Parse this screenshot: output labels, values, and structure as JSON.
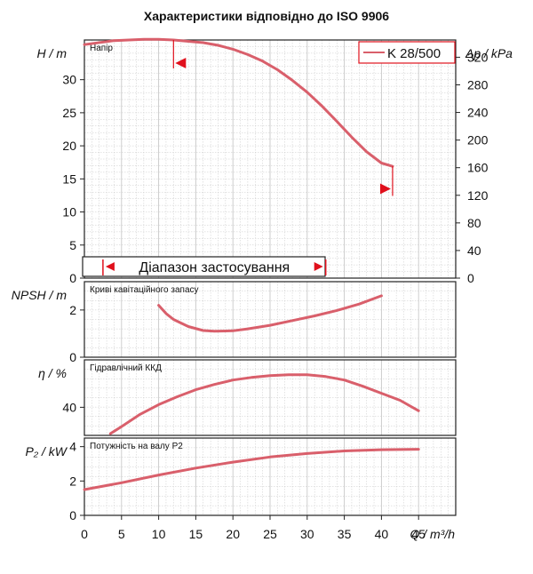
{
  "title": "Характеристики відповідно до ISO 9906",
  "colors": {
    "curve": "#d95f6b",
    "marker": "#e0101c",
    "grid": "#c8c8c8",
    "axis": "#222222"
  },
  "chart_data": [
    {
      "type": "line",
      "panel": "head",
      "label": "Напір",
      "legend": "K 28/500",
      "ylabel_left": "H / m",
      "ylabel_right": "Δp / kPa",
      "ylim": [
        0,
        36
      ],
      "yticks": [
        0,
        5,
        10,
        15,
        20,
        25,
        30
      ],
      "right_ylim": [
        0,
        345
      ],
      "right_yticks": [
        0,
        40,
        80,
        120,
        160,
        200,
        240,
        280,
        320
      ],
      "series": [
        {
          "name": "K 28/500",
          "x": [
            0,
            4,
            8,
            10,
            12,
            14,
            16,
            18,
            20,
            22,
            24,
            26,
            28,
            30,
            32,
            34,
            36,
            38,
            40,
            41.5
          ],
          "y": [
            35.3,
            35.9,
            36.1,
            36.1,
            36.0,
            35.8,
            35.6,
            35.2,
            34.6,
            33.8,
            32.8,
            31.5,
            29.9,
            28.1,
            26.0,
            23.7,
            21.3,
            19.1,
            17.4,
            16.9
          ]
        }
      ],
      "markers": [
        {
          "x": 12,
          "y": 32.5,
          "dir": "left"
        },
        {
          "x": 41.5,
          "y": 13.5,
          "dir": "right"
        }
      ],
      "range_label": "Діапазон застосування",
      "range": [
        2.5,
        32.5
      ]
    },
    {
      "type": "line",
      "panel": "npsh",
      "label": "Криві кавітаційного запасу",
      "ylabel": "NPSH / m",
      "ylim": [
        0,
        3.2
      ],
      "yticks": [
        0,
        2
      ],
      "series": [
        {
          "name": "NPSH",
          "x": [
            10,
            11,
            12,
            14,
            16,
            17.5,
            20,
            22,
            25,
            28,
            31,
            34,
            37,
            40
          ],
          "y": [
            2.2,
            1.85,
            1.6,
            1.3,
            1.13,
            1.1,
            1.12,
            1.2,
            1.35,
            1.55,
            1.75,
            1.98,
            2.25,
            2.6
          ]
        }
      ]
    },
    {
      "type": "line",
      "panel": "efficiency",
      "label": "Гідравлічний ККД",
      "ylabel": "η / %",
      "ylim": [
        24,
        67
      ],
      "yticks": [
        40
      ],
      "series": [
        {
          "name": "η",
          "x": [
            3.5,
            5,
            7.5,
            10,
            12.5,
            15,
            17.5,
            20,
            22.5,
            25,
            27.5,
            30,
            32.5,
            35,
            37.5,
            40,
            42.5,
            45
          ],
          "y": [
            25,
            29,
            36,
            41.5,
            46,
            50,
            53,
            55.5,
            57,
            58,
            58.5,
            58.5,
            57.5,
            55.5,
            52,
            48,
            44,
            38
          ]
        }
      ]
    },
    {
      "type": "line",
      "panel": "power",
      "label": "Потужність на валу P2",
      "ylabel": "P₂ / kW",
      "ylim": [
        0,
        4.5
      ],
      "yticks": [
        0,
        2,
        4
      ],
      "xlabel": "Q / m³/h",
      "xlim": [
        0,
        50
      ],
      "xticks": [
        0,
        5,
        10,
        15,
        20,
        25,
        30,
        35,
        40,
        45
      ],
      "series": [
        {
          "name": "P2",
          "x": [
            0,
            5,
            10,
            15,
            20,
            25,
            30,
            35,
            40,
            45
          ],
          "y": [
            1.5,
            1.9,
            2.35,
            2.75,
            3.1,
            3.4,
            3.6,
            3.75,
            3.82,
            3.85
          ]
        }
      ]
    }
  ]
}
